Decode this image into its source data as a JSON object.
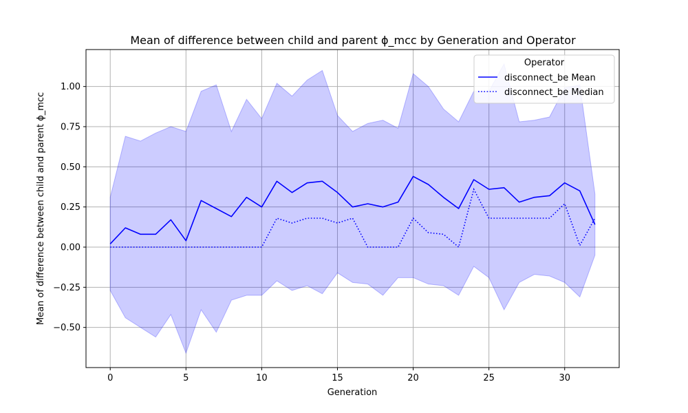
{
  "chart_data": {
    "type": "line",
    "title": "Mean of difference between child and parent ϕ_mcc by Generation and Operator",
    "xlabel": "Generation",
    "ylabel": "Mean of difference between child and parent ϕ_mcc",
    "xlim": [
      -1.6,
      33.6
    ],
    "ylim": [
      -0.75,
      1.23
    ],
    "xticks": [
      0,
      5,
      10,
      15,
      20,
      25,
      30
    ],
    "yticks": [
      -0.5,
      -0.25,
      0.0,
      0.25,
      0.5,
      0.75,
      1.0
    ],
    "ytick_labels": [
      "−0.50",
      "−0.25",
      "0.00",
      "0.25",
      "0.50",
      "0.75",
      "1.00"
    ],
    "grid": true,
    "legend": {
      "title": "Operator",
      "placement": "top-right",
      "entries": [
        "disconnect_be Mean",
        "disconnect_be Median"
      ]
    },
    "x": [
      0,
      1,
      2,
      3,
      4,
      5,
      6,
      7,
      8,
      9,
      10,
      11,
      12,
      13,
      14,
      15,
      16,
      17,
      18,
      19,
      20,
      21,
      22,
      23,
      24,
      25,
      26,
      27,
      28,
      29,
      30,
      31,
      32
    ],
    "series": [
      {
        "name": "disconnect_be Mean",
        "style": "solid",
        "color": "#0000ff",
        "values": [
          0.02,
          0.12,
          0.08,
          0.08,
          0.17,
          0.04,
          0.29,
          0.24,
          0.19,
          0.31,
          0.25,
          0.41,
          0.34,
          0.4,
          0.41,
          0.34,
          0.25,
          0.27,
          0.25,
          0.28,
          0.44,
          0.39,
          0.31,
          0.24,
          0.42,
          0.36,
          0.37,
          0.28,
          0.31,
          0.32,
          0.4,
          0.35,
          0.14
        ]
      },
      {
        "name": "disconnect_be Median",
        "style": "dotted",
        "color": "#0000ff",
        "values": [
          0,
          0,
          0,
          0,
          0,
          0,
          0,
          0,
          0,
          0,
          0,
          0.18,
          0.15,
          0.18,
          0.18,
          0.15,
          0.18,
          0,
          0,
          0,
          0.18,
          0.09,
          0.08,
          0,
          0.36,
          0.18,
          0.18,
          0.18,
          0.18,
          0.18,
          0.27,
          0.01,
          0.18
        ]
      }
    ],
    "band": {
      "color": "#0000ff",
      "upper": [
        0.31,
        0.69,
        0.66,
        0.71,
        0.75,
        0.72,
        0.97,
        1.01,
        0.72,
        0.92,
        0.8,
        1.02,
        0.94,
        1.04,
        1.1,
        0.82,
        0.72,
        0.77,
        0.79,
        0.74,
        1.08,
        1.0,
        0.86,
        0.78,
        0.97,
        0.97,
        1.14,
        0.78,
        0.79,
        0.81,
        0.99,
        1.01,
        0.33
      ],
      "lower": [
        -0.27,
        -0.44,
        -0.5,
        -0.56,
        -0.42,
        -0.66,
        -0.39,
        -0.53,
        -0.33,
        -0.3,
        -0.3,
        -0.21,
        -0.27,
        -0.24,
        -0.29,
        -0.16,
        -0.22,
        -0.23,
        -0.3,
        -0.19,
        -0.19,
        -0.23,
        -0.24,
        -0.3,
        -0.12,
        -0.19,
        -0.39,
        -0.22,
        -0.17,
        -0.18,
        -0.22,
        -0.31,
        -0.05
      ]
    }
  }
}
